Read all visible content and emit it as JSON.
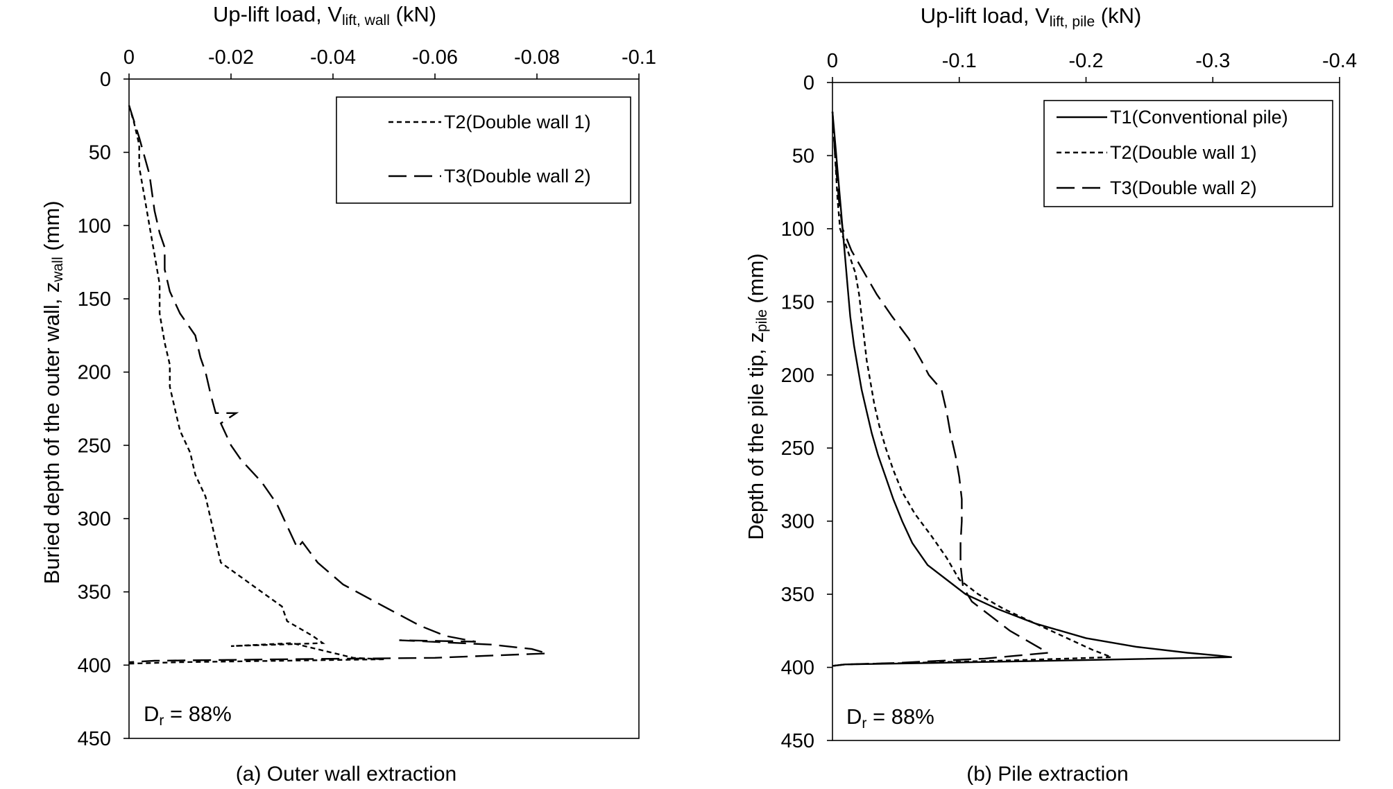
{
  "chart_data": [
    {
      "type": "line",
      "xlabel": "Up-lift load, V",
      "xlabel_sub": "lift, wall",
      "xlabel_unit": "(kN)",
      "ylabel": "Buried depth of the outer wall, z",
      "ylabel_sub": "wall",
      "ylabel_unit": "(mm)",
      "xlim": [
        0,
        -0.1
      ],
      "ylim": [
        0,
        450
      ],
      "x_axis_position": "top",
      "y_inverted": true,
      "x_ticks": [
        "0",
        "-0.02",
        "-0.04",
        "-0.06",
        "-0.08",
        "-0.1"
      ],
      "x_tick_values": [
        0,
        -0.02,
        -0.04,
        -0.06,
        -0.08,
        -0.1
      ],
      "y_ticks": [
        "0",
        "50",
        "100",
        "150",
        "200",
        "250",
        "300",
        "350",
        "400",
        "450"
      ],
      "y_tick_values": [
        0,
        50,
        100,
        150,
        200,
        250,
        300,
        350,
        400,
        450
      ],
      "legend_position": "top-right",
      "annotation": {
        "main": "D",
        "sub": "r",
        "rest": " = 88%"
      },
      "caption": "(a)  Outer  wall  extraction",
      "series": [
        {
          "name": "T2(Double wall 1)",
          "style": "short-dash",
          "points": [
            [
              0,
              18
            ],
            [
              -0.001,
              30
            ],
            [
              -0.002,
              45
            ],
            [
              -0.002,
              60
            ],
            [
              -0.003,
              80
            ],
            [
              -0.004,
              100
            ],
            [
              -0.005,
              120
            ],
            [
              -0.006,
              140
            ],
            [
              -0.006,
              160
            ],
            [
              -0.007,
              180
            ],
            [
              -0.008,
              195
            ],
            [
              -0.008,
              210
            ],
            [
              -0.009,
              225
            ],
            [
              -0.01,
              240
            ],
            [
              -0.012,
              255
            ],
            [
              -0.013,
              270
            ],
            [
              -0.015,
              285
            ],
            [
              -0.016,
              300
            ],
            [
              -0.017,
              315
            ],
            [
              -0.018,
              330
            ],
            [
              -0.022,
              340
            ],
            [
              -0.026,
              350
            ],
            [
              -0.03,
              360
            ],
            [
              -0.031,
              370
            ],
            [
              -0.036,
              380
            ],
            [
              -0.038,
              385
            ],
            [
              -0.02,
              387
            ],
            [
              -0.032,
              385
            ],
            [
              -0.044,
              395
            ],
            [
              -0.05,
              396
            ],
            [
              -0.03,
              397
            ],
            [
              -0.01,
              398
            ],
            [
              0,
              399
            ]
          ]
        },
        {
          "name": "T3(Double wall 2)",
          "style": "long-dash",
          "points": [
            [
              0,
              18
            ],
            [
              -0.002,
              40
            ],
            [
              -0.004,
              65
            ],
            [
              -0.005,
              90
            ],
            [
              -0.006,
              105
            ],
            [
              -0.007,
              115
            ],
            [
              -0.007,
              130
            ],
            [
              -0.008,
              145
            ],
            [
              -0.01,
              160
            ],
            [
              -0.013,
              175
            ],
            [
              -0.014,
              190
            ],
            [
              -0.015,
              200
            ],
            [
              -0.016,
              215
            ],
            [
              -0.017,
              228
            ],
            [
              -0.021,
              228
            ],
            [
              -0.018,
              235
            ],
            [
              -0.02,
              250
            ],
            [
              -0.022,
              260
            ],
            [
              -0.026,
              275
            ],
            [
              -0.029,
              290
            ],
            [
              -0.031,
              305
            ],
            [
              -0.033,
              320
            ],
            [
              -0.034,
              316
            ],
            [
              -0.037,
              330
            ],
            [
              -0.042,
              345
            ],
            [
              -0.05,
              360
            ],
            [
              -0.057,
              373
            ],
            [
              -0.062,
              380
            ],
            [
              -0.068,
              384
            ],
            [
              -0.053,
              383
            ],
            [
              -0.071,
              386
            ],
            [
              -0.079,
              389
            ],
            [
              -0.082,
              392
            ],
            [
              -0.06,
              395
            ],
            [
              -0.03,
              396
            ],
            [
              -0.005,
              397
            ],
            [
              0,
              398
            ]
          ]
        }
      ]
    },
    {
      "type": "line",
      "xlabel": "Up-lift load, V",
      "xlabel_sub": "lift, pile",
      "xlabel_unit": "(kN)",
      "ylabel": "Depth of the pile tip, z",
      "ylabel_sub": "pile",
      "ylabel_unit": "(mm)",
      "xlim": [
        0,
        -0.4
      ],
      "ylim": [
        0,
        450
      ],
      "x_axis_position": "top",
      "y_inverted": true,
      "x_ticks": [
        "0",
        "-0.1",
        "-0.2",
        "-0.3",
        "-0.4"
      ],
      "x_tick_values": [
        0,
        -0.1,
        -0.2,
        -0.3,
        -0.4
      ],
      "y_ticks": [
        "0",
        "50",
        "100",
        "150",
        "200",
        "250",
        "300",
        "350",
        "400",
        "450"
      ],
      "y_tick_values": [
        0,
        50,
        100,
        150,
        200,
        250,
        300,
        350,
        400,
        450
      ],
      "legend_position": "top-right",
      "annotation": {
        "main": "D",
        "sub": "r",
        "rest": " = 88%"
      },
      "caption": "(b)  Pile  extraction",
      "series": [
        {
          "name": "T1(Conventional pile)",
          "style": "solid",
          "points": [
            [
              0,
              20
            ],
            [
              -0.002,
              40
            ],
            [
              -0.004,
              60
            ],
            [
              -0.006,
              80
            ],
            [
              -0.008,
              100
            ],
            [
              -0.01,
              120
            ],
            [
              -0.012,
              140
            ],
            [
              -0.014,
              160
            ],
            [
              -0.017,
              180
            ],
            [
              -0.02,
              195
            ],
            [
              -0.023,
              210
            ],
            [
              -0.027,
              225
            ],
            [
              -0.031,
              240
            ],
            [
              -0.036,
              255
            ],
            [
              -0.042,
              270
            ],
            [
              -0.048,
              285
            ],
            [
              -0.055,
              300
            ],
            [
              -0.063,
              315
            ],
            [
              -0.075,
              330
            ],
            [
              -0.09,
              340
            ],
            [
              -0.105,
              350
            ],
            [
              -0.13,
              360
            ],
            [
              -0.16,
              370
            ],
            [
              -0.2,
              380
            ],
            [
              -0.24,
              386
            ],
            [
              -0.28,
              390
            ],
            [
              -0.305,
              392
            ],
            [
              -0.315,
              393
            ],
            [
              -0.2,
              395
            ],
            [
              -0.08,
              397
            ],
            [
              -0.01,
              398
            ],
            [
              0,
              399
            ]
          ]
        },
        {
          "name": "T2(Double wall 1)",
          "style": "short-dash",
          "points": [
            [
              0,
              20
            ],
            [
              -0.002,
              50
            ],
            [
              -0.004,
              80
            ],
            [
              -0.006,
              100
            ],
            [
              -0.012,
              115
            ],
            [
              -0.018,
              130
            ],
            [
              -0.021,
              145
            ],
            [
              -0.023,
              160
            ],
            [
              -0.025,
              175
            ],
            [
              -0.027,
              190
            ],
            [
              -0.03,
              205
            ],
            [
              -0.033,
              220
            ],
            [
              -0.037,
              235
            ],
            [
              -0.042,
              250
            ],
            [
              -0.048,
              265
            ],
            [
              -0.055,
              280
            ],
            [
              -0.065,
              295
            ],
            [
              -0.078,
              310
            ],
            [
              -0.09,
              325
            ],
            [
              -0.1,
              340
            ],
            [
              -0.115,
              350
            ],
            [
              -0.135,
              360
            ],
            [
              -0.16,
              370
            ],
            [
              -0.185,
              380
            ],
            [
              -0.205,
              388
            ],
            [
              -0.22,
              393
            ],
            [
              -0.15,
              395
            ],
            [
              -0.06,
              397
            ],
            [
              -0.01,
              398
            ],
            [
              0,
              399
            ]
          ]
        },
        {
          "name": "T3(Double wall 2)",
          "style": "long-dash",
          "points": [
            [
              0,
              20
            ],
            [
              -0.002,
              50
            ],
            [
              -0.005,
              80
            ],
            [
              -0.008,
              100
            ],
            [
              -0.015,
              115
            ],
            [
              -0.025,
              130
            ],
            [
              -0.035,
              145
            ],
            [
              -0.047,
              160
            ],
            [
              -0.06,
              175
            ],
            [
              -0.07,
              190
            ],
            [
              -0.076,
              200
            ],
            [
              -0.086,
              210
            ],
            [
              -0.09,
              225
            ],
            [
              -0.093,
              240
            ],
            [
              -0.097,
              255
            ],
            [
              -0.1,
              270
            ],
            [
              -0.102,
              285
            ],
            [
              -0.102,
              300
            ],
            [
              -0.101,
              315
            ],
            [
              -0.101,
              330
            ],
            [
              -0.103,
              345
            ],
            [
              -0.11,
              355
            ],
            [
              -0.125,
              365
            ],
            [
              -0.14,
              375
            ],
            [
              -0.16,
              385
            ],
            [
              -0.17,
              390
            ],
            [
              -0.12,
              394
            ],
            [
              -0.05,
              397
            ],
            [
              -0.01,
              398
            ],
            [
              0,
              399
            ]
          ]
        }
      ]
    }
  ]
}
